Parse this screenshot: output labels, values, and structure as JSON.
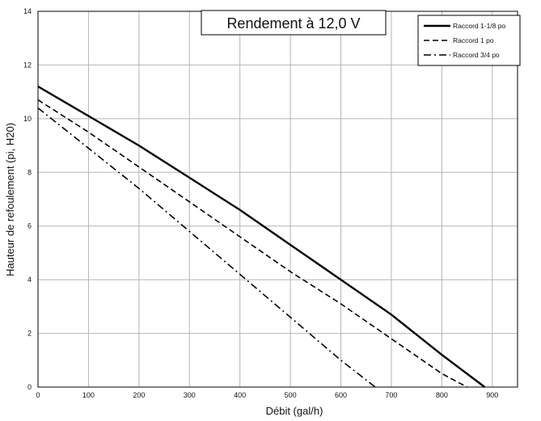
{
  "chart_data": {
    "type": "line",
    "title": "Rendement à 12,0 V",
    "xlabel": "Débit (gal/h)",
    "ylabel": "Hauteur de refoulement (pi, H20)",
    "xlim": [
      0,
      950
    ],
    "ylim": [
      0,
      14
    ],
    "x_ticks": [
      "0",
      "100",
      "200",
      "300",
      "400",
      "500",
      "600",
      "700",
      "800",
      "900"
    ],
    "y_ticks": [
      "0",
      "2",
      "4",
      "6",
      "8",
      "10",
      "12",
      "14"
    ],
    "grid": true,
    "legend_position": "top-right",
    "series": [
      {
        "name": "Raccord 1-1/8 po",
        "style": "solid",
        "x": [
          0,
          100,
          200,
          300,
          400,
          500,
          600,
          700,
          800,
          885
        ],
        "y": [
          11.2,
          10.1,
          9.0,
          7.8,
          6.6,
          5.3,
          4.0,
          2.7,
          1.2,
          0
        ]
      },
      {
        "name": "Raccord 1 po",
        "style": "dashed",
        "x": [
          0,
          100,
          200,
          300,
          400,
          500,
          600,
          700,
          800,
          850
        ],
        "y": [
          10.7,
          9.5,
          8.2,
          6.9,
          5.6,
          4.3,
          3.1,
          1.8,
          0.5,
          0
        ]
      },
      {
        "name": "Raccord 3/4 po",
        "style": "dashdot",
        "x": [
          0,
          100,
          200,
          300,
          400,
          500,
          600,
          668
        ],
        "y": [
          10.4,
          8.9,
          7.4,
          5.8,
          4.2,
          2.6,
          1.0,
          0
        ]
      }
    ]
  }
}
